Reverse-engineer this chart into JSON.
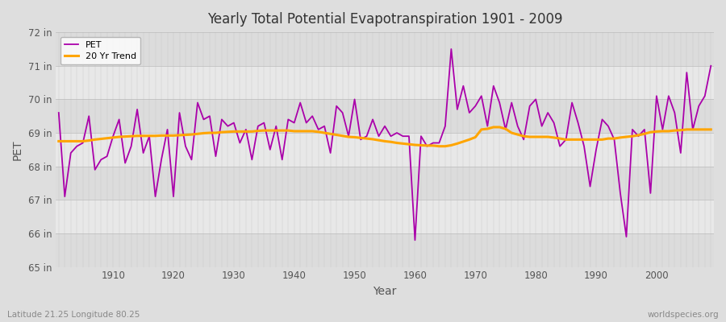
{
  "title": "Yearly Total Potential Evapotranspiration 1901 - 2009",
  "xlabel": "Year",
  "ylabel": "PET",
  "subtitle_left": "Latitude 21.25 Longitude 80.25",
  "subtitle_right": "worldspecies.org",
  "ylim": [
    65,
    72
  ],
  "yticks": [
    65,
    66,
    67,
    68,
    69,
    70,
    71,
    72
  ],
  "ytick_labels": [
    "65 in",
    "66 in",
    "67 in",
    "68 in",
    "69 in",
    "70 in",
    "71 in",
    "72 in"
  ],
  "pet_color": "#AA00AA",
  "trend_color": "#FFA500",
  "bg_color": "#DEDEDE",
  "legend_label_pet": "PET",
  "legend_label_trend": "20 Yr Trend",
  "years": [
    1901,
    1902,
    1903,
    1904,
    1905,
    1906,
    1907,
    1908,
    1909,
    1910,
    1911,
    1912,
    1913,
    1914,
    1915,
    1916,
    1917,
    1918,
    1919,
    1920,
    1921,
    1922,
    1923,
    1924,
    1925,
    1926,
    1927,
    1928,
    1929,
    1930,
    1931,
    1932,
    1933,
    1934,
    1935,
    1936,
    1937,
    1938,
    1939,
    1940,
    1941,
    1942,
    1943,
    1944,
    1945,
    1946,
    1947,
    1948,
    1949,
    1950,
    1951,
    1952,
    1953,
    1954,
    1955,
    1956,
    1957,
    1958,
    1959,
    1960,
    1961,
    1962,
    1963,
    1964,
    1965,
    1966,
    1967,
    1968,
    1969,
    1970,
    1971,
    1972,
    1973,
    1974,
    1975,
    1976,
    1977,
    1978,
    1979,
    1980,
    1981,
    1982,
    1983,
    1984,
    1985,
    1986,
    1987,
    1988,
    1989,
    1990,
    1991,
    1992,
    1993,
    1994,
    1995,
    1996,
    1997,
    1998,
    1999,
    2000,
    2001,
    2002,
    2003,
    2004,
    2005,
    2006,
    2007,
    2008,
    2009
  ],
  "pet_values": [
    69.6,
    67.1,
    68.4,
    68.6,
    68.7,
    69.5,
    67.9,
    68.2,
    68.3,
    68.9,
    69.4,
    68.1,
    68.6,
    69.7,
    68.4,
    68.9,
    67.1,
    68.2,
    69.1,
    67.1,
    69.6,
    68.6,
    68.2,
    69.9,
    69.4,
    69.5,
    68.3,
    69.4,
    69.2,
    69.3,
    68.7,
    69.1,
    68.2,
    69.2,
    69.3,
    68.5,
    69.2,
    68.2,
    69.4,
    69.3,
    69.9,
    69.3,
    69.5,
    69.1,
    69.2,
    68.4,
    69.8,
    69.6,
    68.9,
    70.0,
    68.8,
    68.9,
    69.4,
    68.9,
    69.2,
    68.9,
    69.0,
    68.9,
    68.9,
    65.8,
    68.9,
    68.6,
    68.7,
    68.7,
    69.2,
    71.5,
    69.7,
    70.4,
    69.6,
    69.8,
    70.1,
    69.2,
    70.4,
    69.9,
    69.1,
    69.9,
    69.2,
    68.8,
    69.8,
    70.0,
    69.2,
    69.6,
    69.3,
    68.6,
    68.8,
    69.9,
    69.3,
    68.6,
    67.4,
    68.5,
    69.4,
    69.2,
    68.8,
    67.2,
    65.9,
    69.1,
    68.9,
    69.1,
    67.2,
    70.1,
    69.1,
    70.1,
    69.6,
    68.4,
    70.8,
    69.1,
    69.8,
    70.1,
    71.0
  ],
  "trend_values": [
    68.75,
    68.75,
    68.75,
    68.75,
    68.75,
    68.77,
    68.8,
    68.82,
    68.84,
    68.86,
    68.88,
    68.89,
    68.9,
    68.91,
    68.91,
    68.91,
    68.91,
    68.92,
    68.92,
    68.92,
    68.93,
    68.94,
    68.95,
    68.97,
    68.99,
    69.0,
    69.0,
    69.02,
    69.03,
    69.04,
    69.04,
    69.04,
    69.04,
    69.06,
    69.07,
    69.07,
    69.07,
    69.07,
    69.07,
    69.05,
    69.05,
    69.05,
    69.05,
    69.03,
    69.0,
    68.97,
    68.94,
    68.91,
    68.88,
    68.87,
    68.85,
    68.83,
    68.81,
    68.78,
    68.75,
    68.73,
    68.7,
    68.68,
    68.66,
    68.64,
    68.63,
    68.62,
    68.62,
    68.6,
    68.6,
    68.63,
    68.68,
    68.74,
    68.8,
    68.87,
    69.1,
    69.12,
    69.17,
    69.17,
    69.12,
    69.0,
    68.95,
    68.9,
    68.88,
    68.88,
    68.88,
    68.88,
    68.86,
    68.83,
    68.8,
    68.8,
    68.8,
    68.8,
    68.8,
    68.8,
    68.8,
    68.83,
    68.83,
    68.86,
    68.88,
    68.9,
    68.93,
    68.97,
    69.02,
    69.04,
    69.05,
    69.05,
    69.07,
    69.08,
    69.1,
    69.1,
    69.1,
    69.1,
    69.1
  ]
}
